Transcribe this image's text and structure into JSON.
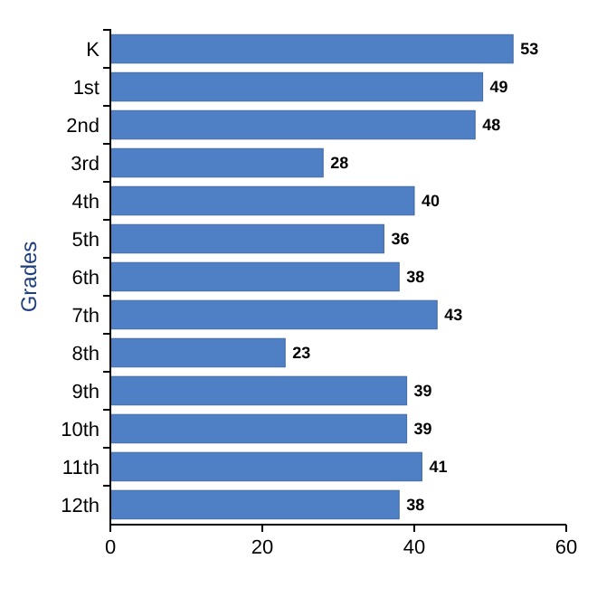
{
  "chart_data": {
    "type": "bar",
    "orientation": "horizontal",
    "ylabel": "Grades",
    "categories": [
      "K",
      "1st",
      "2nd",
      "3rd",
      "4th",
      "5th",
      "6th",
      "7th",
      "8th",
      "9th",
      "10th",
      "11th",
      "12th"
    ],
    "values": [
      53,
      49,
      48,
      28,
      40,
      36,
      38,
      43,
      23,
      39,
      39,
      41,
      38
    ],
    "color": "#4f7fc4",
    "xlim": [
      0,
      60
    ],
    "xticks": [
      0,
      20,
      40,
      60
    ],
    "data_labels": true,
    "grid": false
  }
}
